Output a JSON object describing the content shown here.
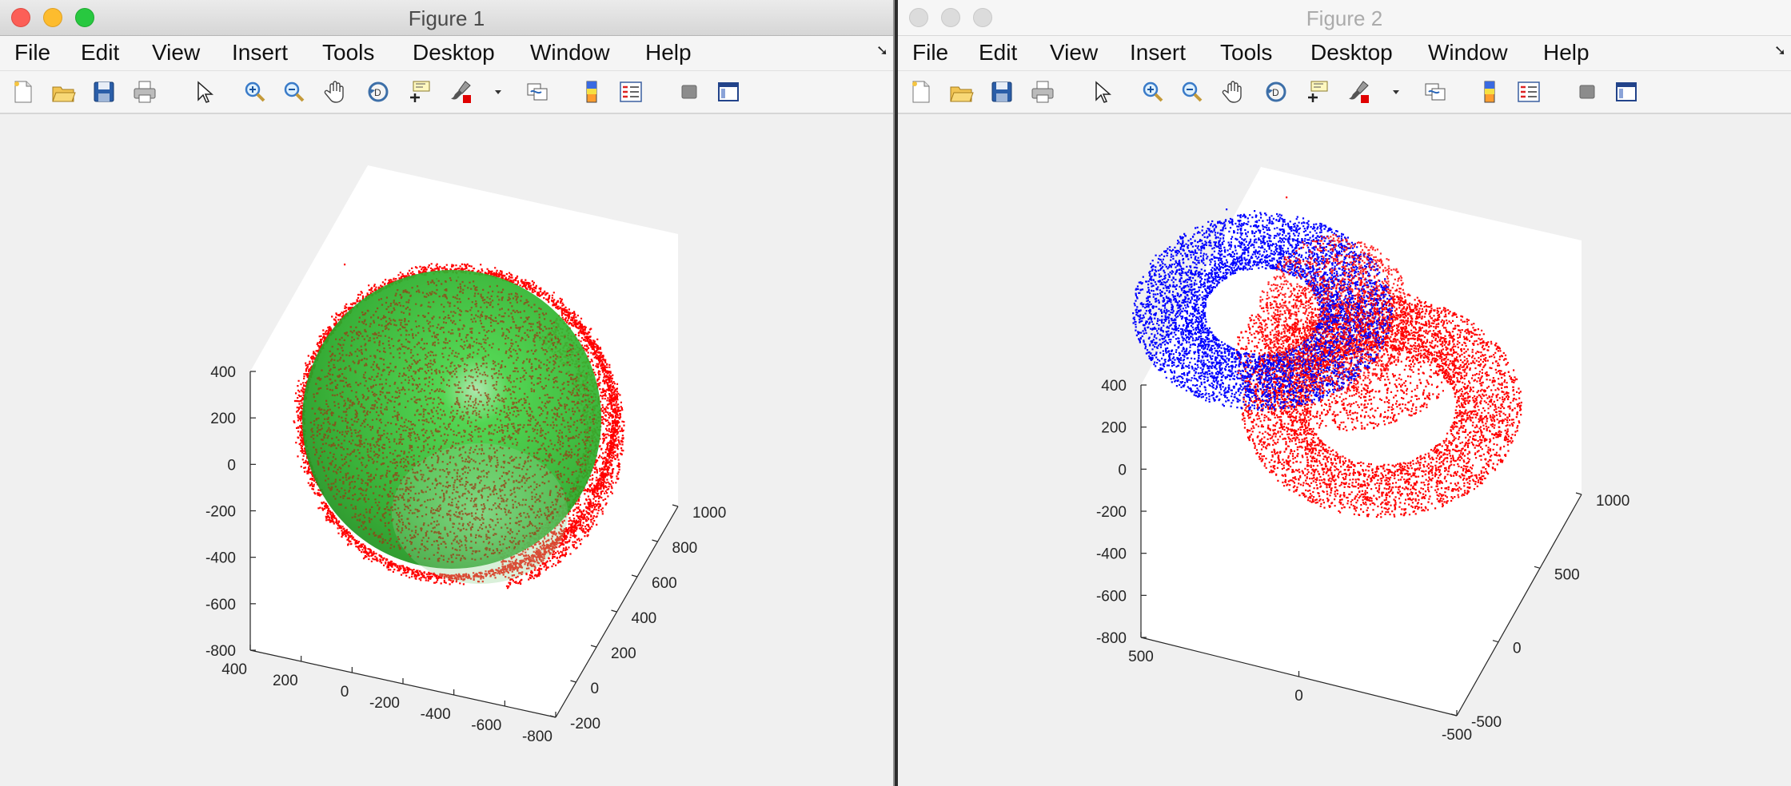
{
  "windows": [
    {
      "title": "Figure 1",
      "active": true,
      "menu": [
        "File",
        "Edit",
        "View",
        "Insert",
        "Tools",
        "Desktop",
        "Window",
        "Help"
      ],
      "toolbar": [
        "new-figure-icon",
        "open-file-icon",
        "save-icon",
        "print-icon",
        "pointer-icon",
        "zoom-in-icon",
        "zoom-out-icon",
        "pan-icon",
        "rotate-3d-icon",
        "data-cursor-icon",
        "brush-icon",
        "brush-dropdown-icon",
        "link-plot-icon",
        "colorbar-icon",
        "legend-icon",
        "hide-plot-tools-icon",
        "show-plot-tools-icon"
      ],
      "z_ticks": [
        "400",
        "200",
        "0",
        "-200",
        "-400",
        "-600",
        "-800"
      ],
      "x_ticks": [
        "400",
        "200",
        "0",
        "-200",
        "-400",
        "-600",
        "-800"
      ],
      "y_ticks": [
        "1000",
        "800",
        "600",
        "400",
        "200",
        "0",
        "-200"
      ]
    },
    {
      "title": "Figure 2",
      "active": false,
      "menu": [
        "File",
        "Edit",
        "View",
        "Insert",
        "Tools",
        "Desktop",
        "Window",
        "Help"
      ],
      "toolbar": [
        "new-figure-icon",
        "open-file-icon",
        "save-icon",
        "print-icon",
        "pointer-icon",
        "zoom-in-icon",
        "zoom-out-icon",
        "pan-icon",
        "rotate-3d-icon",
        "data-cursor-icon",
        "brush-icon",
        "brush-dropdown-icon",
        "link-plot-icon",
        "colorbar-icon",
        "legend-icon",
        "hide-plot-tools-icon",
        "show-plot-tools-icon"
      ],
      "z_ticks": [
        "400",
        "200",
        "0",
        "-200",
        "-400",
        "-600",
        "-800"
      ],
      "x_ticks": [
        "500",
        "0",
        "-500"
      ],
      "y_ticks": [
        "1000",
        "500",
        "0",
        "-500"
      ]
    }
  ],
  "chart_data": [
    {
      "type": "scatter",
      "title": "",
      "view": "3d",
      "zlim": [
        -800,
        400
      ],
      "xlim": [
        -800,
        400
      ],
      "ylim": [
        -200,
        1000
      ],
      "series": [
        {
          "marker": "point",
          "color": "#ff0000",
          "approx_points": 20000
        },
        {
          "kind": "surface",
          "shape": "sphere",
          "color": "#33aa33",
          "transparent": true
        }
      ]
    },
    {
      "type": "scatter",
      "title": "",
      "view": "3d",
      "zlim": [
        -800,
        400
      ],
      "xlim": [
        -500,
        500
      ],
      "ylim": [
        -500,
        1000
      ],
      "series": [
        {
          "marker": "point",
          "color": "#0000ff",
          "approx_points": 15000
        },
        {
          "marker": "point",
          "color": "#ff0000",
          "approx_points": 15000
        }
      ]
    }
  ]
}
